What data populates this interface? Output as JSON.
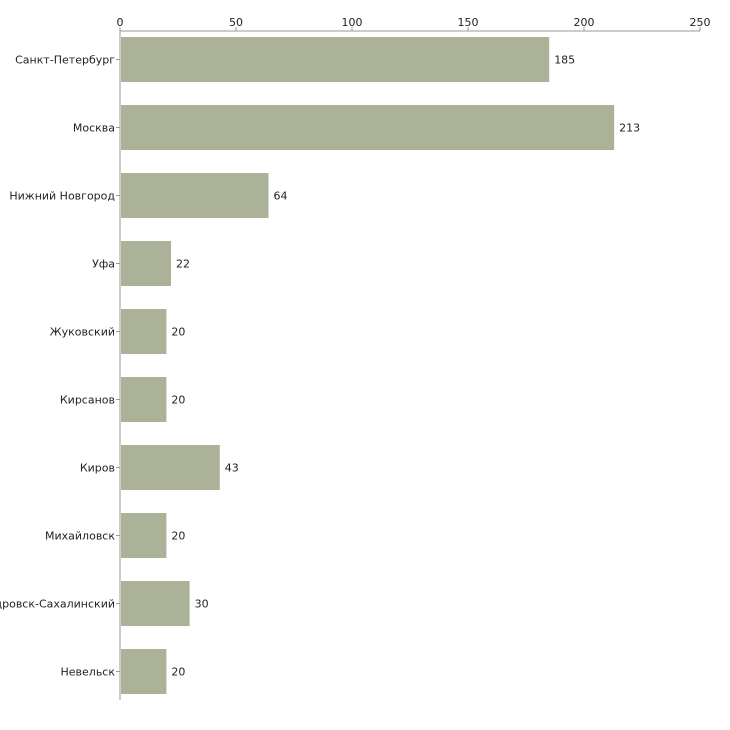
{
  "chart_data": {
    "type": "bar",
    "orientation": "horizontal",
    "title": "",
    "xlabel": "",
    "ylabel": "",
    "xlim": [
      0,
      250
    ],
    "ticks": [
      0,
      50,
      100,
      150,
      200,
      250
    ],
    "tick_labels": [
      "0",
      "50",
      "100",
      "150",
      "200",
      "250"
    ],
    "grid": false,
    "categories": [
      "Санкт-Петербург",
      "Москва",
      "Нижний Новгород",
      "Уфа",
      "Жуковский",
      "Кирсанов",
      "Киров",
      "Михайловск",
      "Александровск-Сахалинский",
      "Невельск"
    ],
    "values": [
      185,
      213,
      64,
      22,
      20,
      20,
      43,
      20,
      30,
      20
    ],
    "value_labels": [
      "185",
      "213",
      "64",
      "22",
      "20",
      "20",
      "43",
      "20",
      "30",
      "20"
    ],
    "colors": {
      "bar": "#abb297",
      "axis": "#999999",
      "text": "#222222"
    }
  }
}
